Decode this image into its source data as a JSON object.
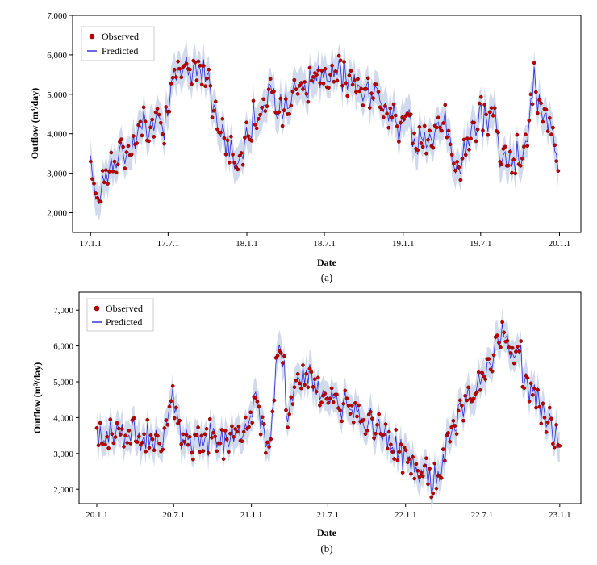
{
  "chart_data": [
    {
      "type": "line",
      "caption": "(a)",
      "xlabel": "Date",
      "ylabel": "Outflow (m³/day)",
      "x_ticks": [
        "17.1.1",
        "17.7.1",
        "18.1.1",
        "18.7.1",
        "19.1.1",
        "19.7.1",
        "20.1.1"
      ],
      "y_ticks": [
        "2,000",
        "3,000",
        "4,000",
        "5,000",
        "6,000",
        "7,000"
      ],
      "xlim": [
        "2016-11-20",
        "2020-02-20"
      ],
      "ylim": [
        1500,
        7000
      ],
      "legend": "top-left",
      "grid": false,
      "colors": {
        "observed": "#c00000",
        "predicted": "#2b2bd9",
        "band": "#c9d4ea"
      },
      "series": [
        {
          "name": "Observed",
          "kind": "scatter",
          "anchors": [
            [
              "2017-01-01",
              3000
            ],
            [
              "2017-01-20",
              2500
            ],
            [
              "2017-02-10",
              3200
            ],
            [
              "2017-03-15",
              3400
            ],
            [
              "2017-04-10",
              3700
            ],
            [
              "2017-05-01",
              4200
            ],
            [
              "2017-06-01",
              4500
            ],
            [
              "2017-06-25",
              4300
            ],
            [
              "2017-07-10",
              5100
            ],
            [
              "2017-08-01",
              5600
            ],
            [
              "2017-09-01",
              5700
            ],
            [
              "2017-10-01",
              5600
            ],
            [
              "2017-10-20",
              4400
            ],
            [
              "2017-11-10",
              3900
            ],
            [
              "2017-12-10",
              3200
            ],
            [
              "2018-01-10",
              4300
            ],
            [
              "2018-02-15",
              4900
            ],
            [
              "2018-03-15",
              4600
            ],
            [
              "2018-04-20",
              5200
            ],
            [
              "2018-05-20",
              5300
            ],
            [
              "2018-06-20",
              5400
            ],
            [
              "2018-07-20",
              5500
            ],
            [
              "2018-08-20",
              5400
            ],
            [
              "2018-09-20",
              5100
            ],
            [
              "2018-10-20",
              4900
            ],
            [
              "2018-11-20",
              5000
            ],
            [
              "2018-12-20",
              4300
            ],
            [
              "2019-01-20",
              4100
            ],
            [
              "2019-02-20",
              3800
            ],
            [
              "2019-03-20",
              4300
            ],
            [
              "2019-04-10",
              4600
            ],
            [
              "2019-05-01",
              2800
            ],
            [
              "2019-05-20",
              3500
            ],
            [
              "2019-06-20",
              4200
            ],
            [
              "2019-07-20",
              4500
            ],
            [
              "2019-08-05",
              4700
            ],
            [
              "2019-08-15",
              3500
            ],
            [
              "2019-09-15",
              3300
            ],
            [
              "2019-10-15",
              3600
            ],
            [
              "2019-11-01",
              5400
            ],
            [
              "2019-11-20",
              4500
            ],
            [
              "2019-12-10",
              3900
            ],
            [
              "2020-01-01",
              3400
            ]
          ]
        },
        {
          "name": "Predicted",
          "kind": "line",
          "anchors": [
            [
              "2017-01-01",
              3000
            ],
            [
              "2017-01-20",
              2500
            ],
            [
              "2017-02-10",
              3200
            ],
            [
              "2017-03-15",
              3400
            ],
            [
              "2017-04-10",
              3700
            ],
            [
              "2017-05-01",
              4200
            ],
            [
              "2017-06-01",
              4500
            ],
            [
              "2017-06-25",
              4300
            ],
            [
              "2017-07-10",
              5100
            ],
            [
              "2017-08-01",
              5600
            ],
            [
              "2017-09-01",
              5700
            ],
            [
              "2017-10-01",
              5600
            ],
            [
              "2017-10-20",
              4400
            ],
            [
              "2017-11-10",
              3900
            ],
            [
              "2017-12-10",
              3200
            ],
            [
              "2018-01-10",
              4300
            ],
            [
              "2018-02-15",
              4900
            ],
            [
              "2018-03-15",
              4600
            ],
            [
              "2018-04-20",
              5200
            ],
            [
              "2018-05-20",
              5300
            ],
            [
              "2018-06-20",
              5400
            ],
            [
              "2018-07-20",
              5500
            ],
            [
              "2018-08-20",
              5400
            ],
            [
              "2018-09-20",
              5100
            ],
            [
              "2018-10-20",
              4900
            ],
            [
              "2018-11-20",
              5000
            ],
            [
              "2018-12-20",
              4300
            ],
            [
              "2019-01-20",
              4100
            ],
            [
              "2019-02-20",
              3800
            ],
            [
              "2019-03-20",
              4300
            ],
            [
              "2019-04-10",
              4600
            ],
            [
              "2019-05-01",
              2800
            ],
            [
              "2019-05-20",
              3500
            ],
            [
              "2019-06-20",
              4200
            ],
            [
              "2019-07-20",
              4500
            ],
            [
              "2019-08-05",
              4700
            ],
            [
              "2019-08-15",
              3500
            ],
            [
              "2019-09-15",
              3300
            ],
            [
              "2019-10-15",
              3600
            ],
            [
              "2019-11-01",
              5400
            ],
            [
              "2019-11-20",
              4500
            ],
            [
              "2019-12-10",
              3900
            ],
            [
              "2020-01-01",
              3400
            ]
          ]
        }
      ]
    },
    {
      "type": "line",
      "caption": "(b)",
      "xlabel": "Date",
      "ylabel": "Outflow (m³/day)",
      "x_ticks": [
        "20.1.1",
        "20.7.1",
        "21.1.1",
        "21.7.1",
        "22.1.1",
        "22.7.1",
        "23.1.1"
      ],
      "y_ticks": [
        "2,000",
        "3,000",
        "4,000",
        "5,000",
        "6,000",
        "7,000"
      ],
      "xlim": [
        "2019-11-20",
        "2023-02-20"
      ],
      "ylim": [
        1600,
        7500
      ],
      "legend": "top-left",
      "grid": false,
      "colors": {
        "observed": "#c00000",
        "predicted": "#2b2bd9",
        "band": "#c9d4ea"
      },
      "series": [
        {
          "name": "Observed",
          "kind": "scatter",
          "anchors": [
            [
              "2020-01-01",
              3500
            ],
            [
              "2020-03-01",
              3600
            ],
            [
              "2020-05-01",
              3400
            ],
            [
              "2020-06-15",
              3600
            ],
            [
              "2020-07-05",
              4700
            ],
            [
              "2020-07-20",
              3300
            ],
            [
              "2020-09-01",
              3400
            ],
            [
              "2020-11-01",
              3500
            ],
            [
              "2020-12-25",
              3600
            ],
            [
              "2021-01-10",
              4800
            ],
            [
              "2021-01-25",
              3700
            ],
            [
              "2021-02-15",
              3400
            ],
            [
              "2021-03-01",
              5800
            ],
            [
              "2021-03-15",
              6000
            ],
            [
              "2021-03-25",
              4200
            ],
            [
              "2021-04-15",
              4800
            ],
            [
              "2021-05-15",
              5200
            ],
            [
              "2021-06-15",
              4700
            ],
            [
              "2021-07-15",
              4600
            ],
            [
              "2021-08-15",
              4300
            ],
            [
              "2021-09-15",
              4100
            ],
            [
              "2021-10-15",
              3700
            ],
            [
              "2021-11-15",
              3300
            ],
            [
              "2021-12-15",
              3000
            ],
            [
              "2022-01-15",
              2800
            ],
            [
              "2022-02-15",
              2400
            ],
            [
              "2022-03-15",
              2300
            ],
            [
              "2022-04-01",
              3000
            ],
            [
              "2022-04-20",
              3500
            ],
            [
              "2022-05-15",
              4300
            ],
            [
              "2022-06-15",
              4800
            ],
            [
              "2022-07-15",
              5400
            ],
            [
              "2022-08-15",
              6300
            ],
            [
              "2022-09-01",
              6000
            ],
            [
              "2022-09-20",
              5900
            ],
            [
              "2022-10-15",
              5000
            ],
            [
              "2022-11-15",
              4300
            ],
            [
              "2022-12-15",
              3500
            ],
            [
              "2023-01-01",
              3600
            ]
          ]
        },
        {
          "name": "Predicted",
          "kind": "line",
          "anchors": [
            [
              "2020-01-01",
              3500
            ],
            [
              "2020-03-01",
              3600
            ],
            [
              "2020-05-01",
              3400
            ],
            [
              "2020-06-15",
              3600
            ],
            [
              "2020-07-05",
              4700
            ],
            [
              "2020-07-20",
              3300
            ],
            [
              "2020-09-01",
              3400
            ],
            [
              "2020-11-01",
              3500
            ],
            [
              "2020-12-25",
              3600
            ],
            [
              "2021-01-10",
              4800
            ],
            [
              "2021-01-25",
              3700
            ],
            [
              "2021-02-15",
              3400
            ],
            [
              "2021-03-01",
              5800
            ],
            [
              "2021-03-15",
              6000
            ],
            [
              "2021-03-25",
              4200
            ],
            [
              "2021-04-15",
              4800
            ],
            [
              "2021-05-15",
              5200
            ],
            [
              "2021-06-15",
              4700
            ],
            [
              "2021-07-15",
              4600
            ],
            [
              "2021-08-15",
              4300
            ],
            [
              "2021-09-15",
              4100
            ],
            [
              "2021-10-15",
              3700
            ],
            [
              "2021-11-15",
              3300
            ],
            [
              "2021-12-15",
              3000
            ],
            [
              "2022-01-15",
              2800
            ],
            [
              "2022-02-15",
              2400
            ],
            [
              "2022-03-15",
              2300
            ],
            [
              "2022-04-01",
              3000
            ],
            [
              "2022-04-20",
              3500
            ],
            [
              "2022-05-15",
              4300
            ],
            [
              "2022-06-15",
              4800
            ],
            [
              "2022-07-15",
              5400
            ],
            [
              "2022-08-15",
              6300
            ],
            [
              "2022-09-01",
              6000
            ],
            [
              "2022-09-20",
              5900
            ],
            [
              "2022-10-15",
              5000
            ],
            [
              "2022-11-15",
              4300
            ],
            [
              "2022-12-15",
              3500
            ],
            [
              "2023-01-01",
              3600
            ]
          ]
        }
      ]
    }
  ]
}
